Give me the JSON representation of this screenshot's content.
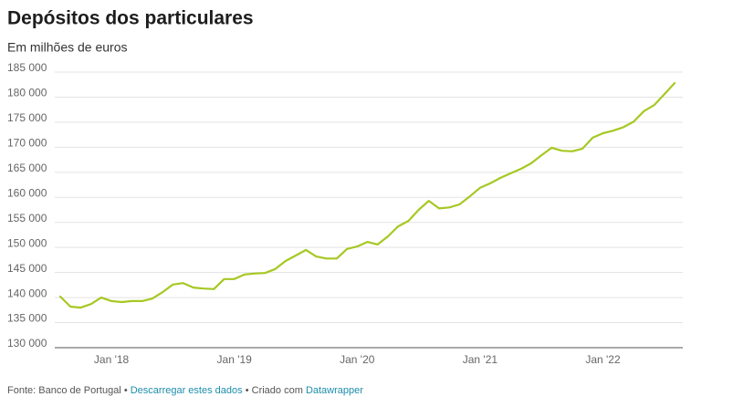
{
  "chart_data": {
    "type": "line",
    "title": "Depósitos dos particulares",
    "subtitle": "Em milhões de euros",
    "categories": [
      null,
      null,
      null,
      null,
      null,
      "Jan '18",
      null,
      null,
      null,
      null,
      null,
      null,
      null,
      null,
      null,
      null,
      null,
      "Jan '19",
      null,
      null,
      null,
      null,
      null,
      null,
      null,
      null,
      null,
      null,
      null,
      "Jan '20",
      null,
      null,
      null,
      null,
      null,
      null,
      null,
      null,
      null,
      null,
      null,
      "Jan '21",
      null,
      null,
      null,
      null,
      null,
      null,
      null,
      null,
      null,
      null,
      null,
      "Jan '22",
      null,
      null,
      null,
      null,
      null,
      null,
      null
    ],
    "series": [
      {
        "color": "#a6c823",
        "values": [
          140200,
          138200,
          138000,
          138700,
          140000,
          139300,
          139100,
          139300,
          139300,
          139800,
          141100,
          142600,
          142900,
          142000,
          141800,
          141700,
          143700,
          143700,
          144600,
          144800,
          144900,
          145700,
          147300,
          148400,
          149500,
          148200,
          147800,
          147800,
          149700,
          150200,
          151100,
          150600,
          152200,
          154200,
          155300,
          157500,
          159300,
          157800,
          158000,
          158600,
          160200,
          161900,
          162800,
          163900,
          164800,
          165700,
          166800,
          168400,
          169900,
          169300,
          169200,
          169700,
          171900,
          172800,
          173300,
          174000,
          175100,
          177200,
          178400,
          180600,
          182800
        ]
      }
    ],
    "ylim": [
      130000,
      185000
    ],
    "yticks": [
      {
        "value": 130000,
        "label": "130 000"
      },
      {
        "value": 135000,
        "label": "135 000"
      },
      {
        "value": 140000,
        "label": "140 000"
      },
      {
        "value": 145000,
        "label": "145 000"
      },
      {
        "value": 150000,
        "label": "150 000"
      },
      {
        "value": 155000,
        "label": "155 000"
      },
      {
        "value": 160000,
        "label": "160 000"
      },
      {
        "value": 165000,
        "label": "165 000"
      },
      {
        "value": 170000,
        "label": "170 000"
      },
      {
        "value": 175000,
        "label": "175 000"
      },
      {
        "value": 180000,
        "label": "180 000"
      },
      {
        "value": 185000,
        "label": "185 000"
      }
    ],
    "grid": true,
    "footer": {
      "source": "Fonte: Banco de Portugal",
      "separator": "•",
      "download": "Descarregar estes dados",
      "created": "Criado com",
      "tool": "Datawrapper"
    }
  }
}
